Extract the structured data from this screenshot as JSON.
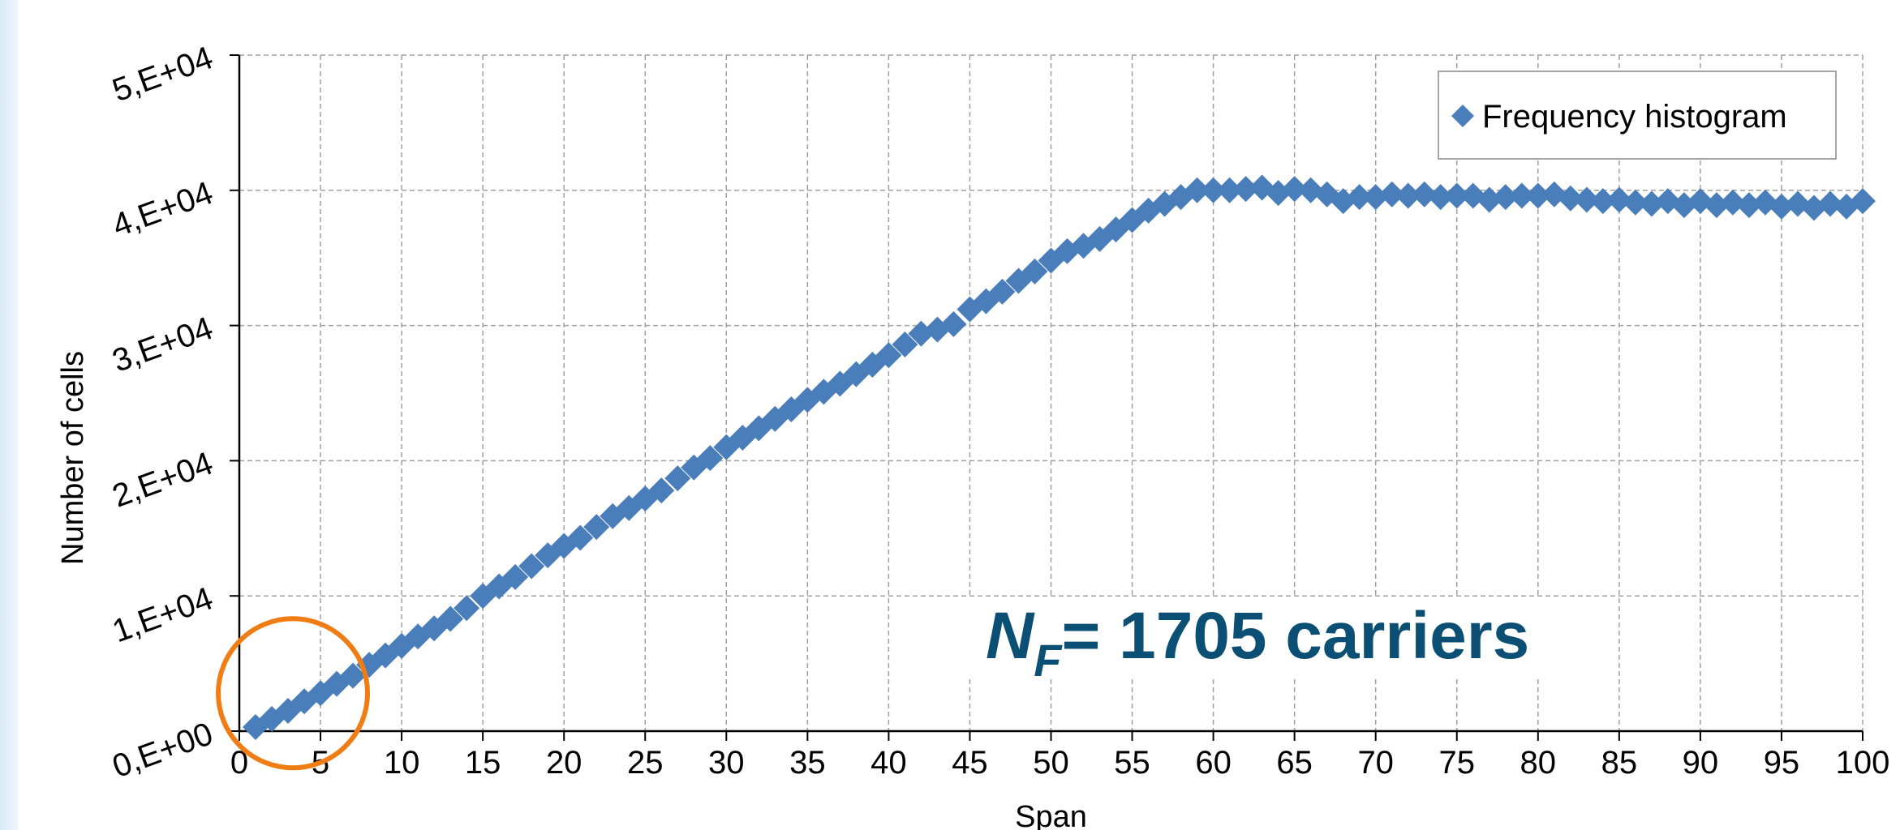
{
  "chart_data": {
    "type": "scatter",
    "title": "",
    "xlabel": "Span",
    "ylabel": "Number of cells",
    "xlim": [
      0,
      100
    ],
    "ylim": [
      0,
      50000
    ],
    "x_ticks": [
      "0",
      "5",
      "10",
      "15",
      "20",
      "25",
      "30",
      "35",
      "40",
      "45",
      "50",
      "55",
      "60",
      "65",
      "70",
      "75",
      "80",
      "85",
      "90",
      "95",
      "100"
    ],
    "y_ticks": [
      "0,E+00",
      "1,E+04",
      "2,E+04",
      "3,E+04",
      "4,E+04",
      "5,E+04"
    ],
    "grid": true,
    "legend_position": "top-right",
    "series": [
      {
        "name": "Frequency histogram",
        "color": "#4a7ebb",
        "marker": "diamond",
        "x": [
          1,
          2,
          3,
          4,
          5,
          6,
          7,
          8,
          9,
          10,
          11,
          12,
          13,
          14,
          15,
          16,
          17,
          18,
          19,
          20,
          21,
          22,
          23,
          24,
          25,
          26,
          27,
          28,
          29,
          30,
          31,
          32,
          33,
          34,
          35,
          36,
          37,
          38,
          39,
          40,
          41,
          42,
          43,
          44,
          45,
          46,
          47,
          48,
          49,
          50,
          51,
          52,
          53,
          54,
          55,
          56,
          57,
          58,
          59,
          60,
          61,
          62,
          63,
          64,
          65,
          66,
          67,
          68,
          69,
          70,
          71,
          72,
          73,
          74,
          75,
          76,
          77,
          78,
          79,
          80,
          81,
          82,
          83,
          84,
          85,
          86,
          87,
          88,
          89,
          90,
          91,
          92,
          93,
          94,
          95,
          96,
          97,
          98,
          99,
          100
        ],
        "y": [
          300,
          900,
          1500,
          2200,
          2800,
          3500,
          4100,
          4900,
          5600,
          6300,
          7000,
          7600,
          8300,
          9100,
          10000,
          10700,
          11400,
          12200,
          13000,
          13700,
          14300,
          15100,
          15900,
          16500,
          17200,
          17800,
          18700,
          19500,
          20200,
          21000,
          21700,
          22400,
          23100,
          23800,
          24500,
          25100,
          25700,
          26400,
          27100,
          27800,
          28600,
          29400,
          29700,
          30100,
          31200,
          31800,
          32500,
          33300,
          34000,
          34800,
          35500,
          35900,
          36400,
          37100,
          37800,
          38500,
          39000,
          39500,
          40000,
          40000,
          40000,
          40100,
          40200,
          39800,
          40100,
          40000,
          39700,
          39200,
          39500,
          39500,
          39700,
          39600,
          39700,
          39500,
          39600,
          39600,
          39300,
          39500,
          39600,
          39600,
          39700,
          39400,
          39300,
          39200,
          39300,
          39100,
          39000,
          39200,
          38900,
          39200,
          38900,
          39100,
          38900,
          39100,
          38800,
          39000,
          38700,
          39000,
          38800,
          39200
        ]
      }
    ],
    "annotations": [
      {
        "symbol": "N",
        "subscript": "F",
        "text": "= 1705 carriers",
        "color": "#0b4f74"
      }
    ],
    "highlight_circle": {
      "x": 3.3,
      "y": 2800,
      "color": "#f07c14"
    }
  }
}
